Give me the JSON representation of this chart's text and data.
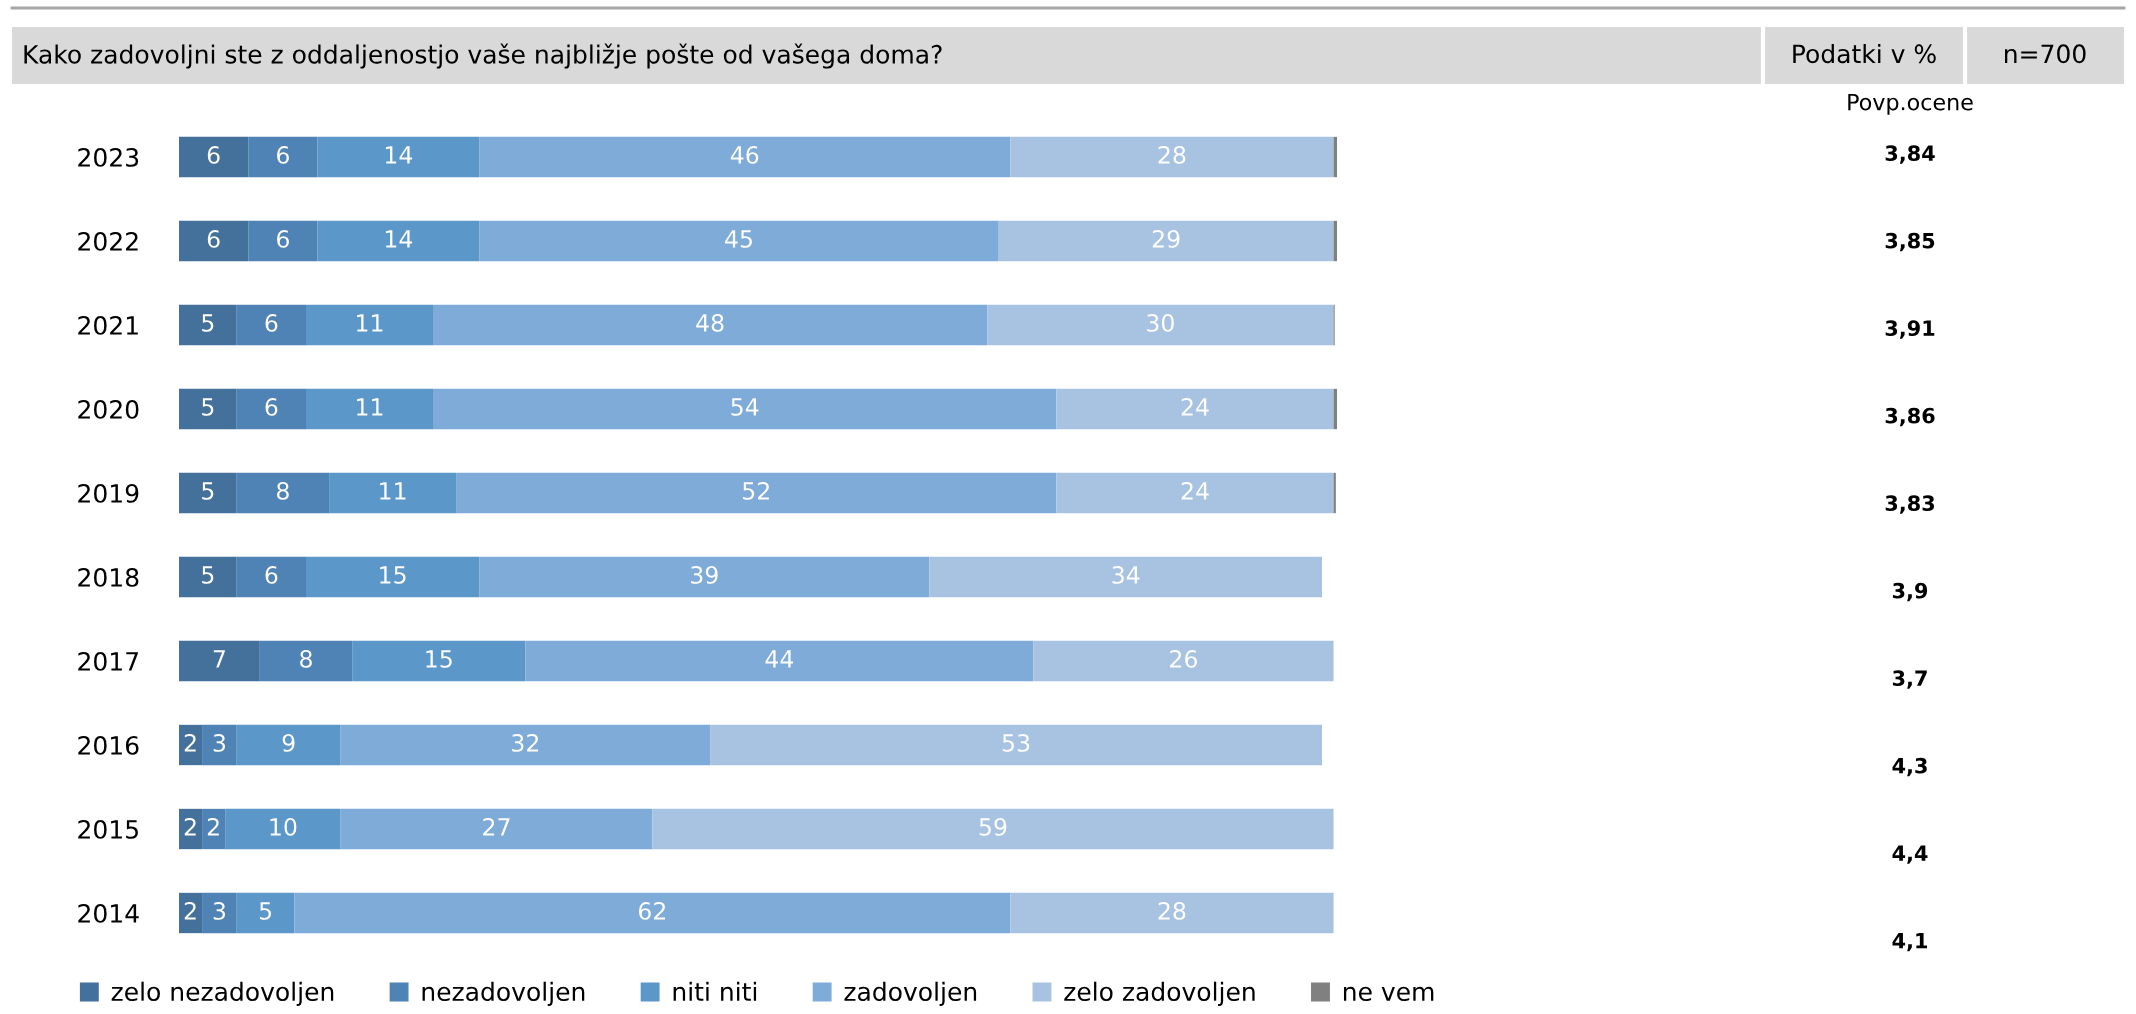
{
  "chart_data": {
    "type": "bar",
    "orientation": "horizontal",
    "stacked": true,
    "title": "Kako zadovoljni ste z oddaljenostjo vaše najbližje pošte od vašega doma?",
    "categories": [
      "2023",
      "2022",
      "2021",
      "2020",
      "2019",
      "2018",
      "2017",
      "2016",
      "2015",
      "2014"
    ],
    "series": [
      {
        "name": "zelo nezadovoljen",
        "color": "#44719c",
        "values": [
          6,
          6,
          5,
          5,
          5,
          5,
          7,
          2,
          2,
          2
        ],
        "value_labels": [
          "6",
          "6",
          "5",
          "5",
          "5",
          "5",
          "7",
          "2",
          "2",
          "2"
        ]
      },
      {
        "name": "nezadovoljen",
        "color": "#4f82b5",
        "values": [
          6,
          6,
          6,
          6,
          8,
          6,
          8,
          3,
          2,
          3
        ],
        "value_labels": [
          "6",
          "6",
          "6",
          "6",
          "8",
          "6",
          "8",
          "3",
          "2",
          "3"
        ]
      },
      {
        "name": "niti niti",
        "color": "#5b97c9",
        "values": [
          14,
          14,
          11,
          11,
          11,
          15,
          15,
          9,
          10,
          5
        ],
        "value_labels": [
          "14",
          "14",
          "11",
          "11",
          "11",
          "15",
          "15",
          "9",
          "10",
          "5"
        ]
      },
      {
        "name": "zadovoljen",
        "color": "#7eabd7",
        "values": [
          46,
          45,
          48,
          54,
          52,
          39,
          44,
          32,
          27,
          62
        ],
        "value_labels": [
          "46",
          "45",
          "48",
          "54",
          "52",
          "39",
          "44",
          "32",
          "27",
          "62"
        ]
      },
      {
        "name": "zelo zadovoljen",
        "color": "#a8c3e2",
        "values": [
          28,
          29,
          30,
          24,
          24,
          34,
          26,
          53,
          59,
          28
        ],
        "value_labels": [
          "28",
          "29",
          "30",
          "24",
          "24",
          "34",
          "26",
          "53",
          "59",
          "28"
        ]
      },
      {
        "name": "ne vem",
        "color": "#808080",
        "values": [
          0.3,
          0.3,
          0.1,
          0.3,
          0.2,
          0,
          0,
          0,
          0,
          0
        ],
        "value_labels": [
          null,
          null,
          null,
          null,
          null,
          null,
          null,
          null,
          null,
          null
        ]
      }
    ],
    "xlim": [
      0,
      100.3
    ],
    "tick_labels": "y",
    "legend": "bottom",
    "grid": false,
    "annotations": [
      "Podatki v %",
      "n=700",
      "Povp.ocene",
      "3,84",
      "3,85",
      "3,91",
      "3,86",
      "3,83",
      "3,9",
      "3,7",
      "4,3",
      "4,4",
      "4,1"
    ]
  }
}
